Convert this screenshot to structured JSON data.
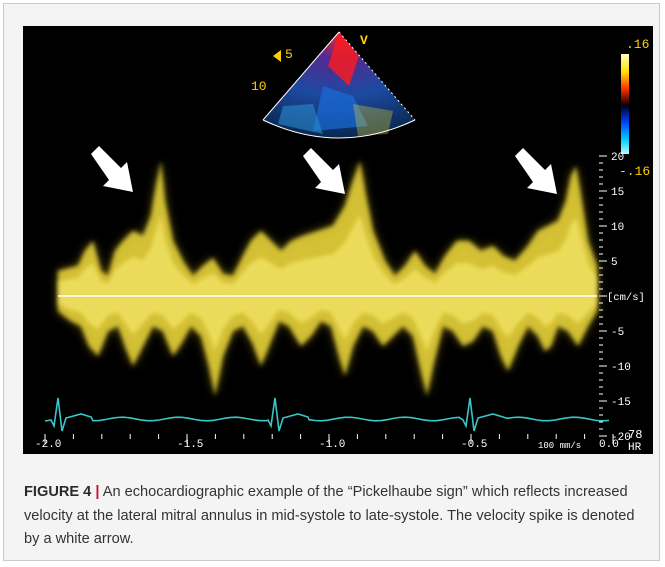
{
  "figure": {
    "label": "FIGURE 4",
    "separator": "|",
    "caption": "An echocardiographic example of the “Pickelhaube sign” which reflects increased velocity at the lateral mitral annulus in mid-systole to late-systole. The velocity spike is denoted by a white arrow."
  },
  "echo": {
    "sector_depth_labels": [
      "5",
      "10"
    ],
    "sector_marker": "V",
    "colorbar_top": ".16",
    "colorbar_bottom": "-.16",
    "velocity_axis": {
      "ticks": [
        "20",
        "15",
        "10",
        "5",
        "-5",
        "-10",
        "-15",
        "-20"
      ],
      "unit": "[cm/s]"
    },
    "time_axis": {
      "ticks": [
        "-2.0",
        "-1.5",
        "-1.0",
        "-0.5",
        "0.0"
      ],
      "sweep": "100 mm/s"
    },
    "heart_rate": {
      "value": "78",
      "label": "HR"
    },
    "colors": {
      "background": "#000000",
      "doppler": "#e6d23a",
      "ecg": "#39c6c6",
      "baseline": "#ffffff",
      "arrow": "#ffffff"
    }
  }
}
